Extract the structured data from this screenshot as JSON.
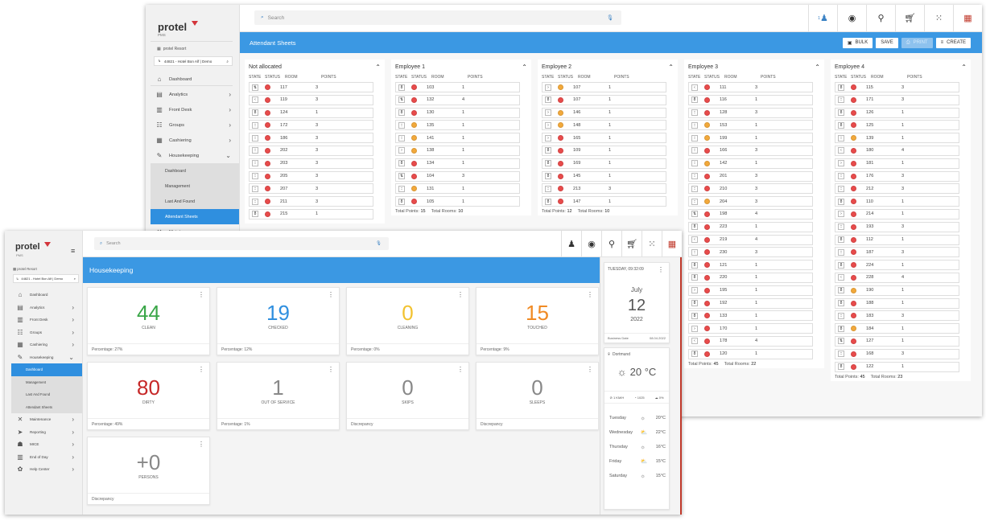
{
  "back": {
    "logo": "protel",
    "logo_sub": "PMS",
    "hotel_name": "protel Resort",
    "hotel_selector": "44821 - Hotel Bon Alf | Demo",
    "search_placeholder": "Search",
    "topbar_badge": "1",
    "page_title": "Attendant Sheets",
    "buttons": {
      "bulk": "BULK",
      "save": "SAVE",
      "print": "PRINT",
      "create": "CREATE"
    },
    "nav": [
      {
        "label": "Dashboard",
        "icon": "home-icon",
        "chev": ""
      },
      {
        "label": "Analytics",
        "icon": "analytics-icon",
        "chev": "›"
      },
      {
        "label": "Front Desk",
        "icon": "front-desk-icon",
        "chev": "›"
      },
      {
        "label": "Groups",
        "icon": "groups-icon",
        "chev": "›"
      },
      {
        "label": "Cashiering",
        "icon": "cashiering-icon",
        "chev": "›"
      },
      {
        "label": "Housekeeping",
        "icon": "broom-icon",
        "chev": "⌄"
      },
      {
        "label": "Dashboard",
        "icon": "",
        "chev": "",
        "sub": true
      },
      {
        "label": "Management",
        "icon": "",
        "chev": "",
        "sub": true
      },
      {
        "label": "Last And Found",
        "icon": "",
        "chev": "",
        "sub": true
      },
      {
        "label": "Attendant Sheets",
        "icon": "",
        "chev": "",
        "sub": true,
        "active": true
      },
      {
        "label": "Maintenance",
        "icon": "wrench-icon",
        "chev": "›"
      }
    ],
    "col_headers": {
      "state": "STATE",
      "status": "STATUS",
      "room": "ROOM",
      "points": "POINTS"
    },
    "labels": {
      "total_points": "Total Points:",
      "total_rooms": "Total Rooms:"
    },
    "columns": [
      {
        "title": "Not allocated",
        "total_points": "",
        "total_rooms": "",
        "rows": [
          {
            "state": "⇅",
            "color": "#e84b4b",
            "room": "117",
            "points": "3"
          },
          {
            "state": "‹",
            "color": "#e84b4b",
            "room": "119",
            "points": "3"
          },
          {
            "state": "8",
            "color": "#e84b4b",
            "room": "124",
            "points": "1"
          },
          {
            "state": "::",
            "color": "#e84b4b",
            "room": "172",
            "points": "3"
          },
          {
            "state": "::",
            "color": "#e84b4b",
            "room": "186",
            "points": "3"
          },
          {
            "state": "::",
            "color": "#e84b4b",
            "room": "202",
            "points": "3"
          },
          {
            "state": "::",
            "color": "#e84b4b",
            "room": "203",
            "points": "3"
          },
          {
            "state": "::",
            "color": "#e84b4b",
            "room": "205",
            "points": "3"
          },
          {
            "state": "::",
            "color": "#e84b4b",
            "room": "207",
            "points": "3"
          },
          {
            "state": "::",
            "color": "#e84b4b",
            "room": "211",
            "points": "3"
          },
          {
            "state": "8",
            "color": "#e84b4b",
            "room": "215",
            "points": "1"
          }
        ]
      },
      {
        "title": "Employee 1",
        "total_points": "15",
        "total_rooms": "10",
        "rows": [
          {
            "state": "8",
            "color": "#e84b4b",
            "room": "103",
            "points": "1"
          },
          {
            "state": "⇅",
            "color": "#e84b4b",
            "room": "132",
            "points": "4"
          },
          {
            "state": "8",
            "color": "#e84b4b",
            "room": "130",
            "points": "1"
          },
          {
            "state": "::",
            "color": "#f2a93b",
            "room": "135",
            "points": "1"
          },
          {
            "state": "::",
            "color": "#f2a93b",
            "room": "141",
            "points": "1"
          },
          {
            "state": "›",
            "color": "#f2a93b",
            "room": "138",
            "points": "1"
          },
          {
            "state": "8",
            "color": "#e84b4b",
            "room": "134",
            "points": "1"
          },
          {
            "state": "⇅",
            "color": "#e84b4b",
            "room": "104",
            "points": "3"
          },
          {
            "state": "::",
            "color": "#f2a93b",
            "room": "131",
            "points": "1"
          },
          {
            "state": "8",
            "color": "#e84b4b",
            "room": "105",
            "points": "1"
          }
        ]
      },
      {
        "title": "Employee 2",
        "total_points": "12",
        "total_rooms": "10",
        "rows": [
          {
            "state": "›",
            "color": "#f2a93b",
            "room": "107",
            "points": "1"
          },
          {
            "state": "8",
            "color": "#e84b4b",
            "room": "107",
            "points": "1"
          },
          {
            "state": "›",
            "color": "#f2a93b",
            "room": "146",
            "points": "1"
          },
          {
            "state": "›",
            "color": "#f2a93b",
            "room": "148",
            "points": "1"
          },
          {
            "state": "›",
            "color": "#e84b4b",
            "room": "165",
            "points": "1"
          },
          {
            "state": "8",
            "color": "#e84b4b",
            "room": "109",
            "points": "1"
          },
          {
            "state": "8",
            "color": "#e84b4b",
            "room": "169",
            "points": "1"
          },
          {
            "state": "8",
            "color": "#e84b4b",
            "room": "145",
            "points": "1"
          },
          {
            "state": "::",
            "color": "#e84b4b",
            "room": "213",
            "points": "3"
          },
          {
            "state": "8",
            "color": "#e84b4b",
            "room": "147",
            "points": "1"
          }
        ]
      },
      {
        "title": "Employee 3",
        "total_points": "45",
        "total_rooms": "22",
        "rows": [
          {
            "state": "‹",
            "color": "#e84b4b",
            "room": "111",
            "points": "3"
          },
          {
            "state": "8",
            "color": "#e84b4b",
            "room": "116",
            "points": "1"
          },
          {
            "state": "::",
            "color": "#e84b4b",
            "room": "128",
            "points": "3"
          },
          {
            "state": "::",
            "color": "#f2a93b",
            "room": "153",
            "points": "1"
          },
          {
            "state": "::",
            "color": "#f2a93b",
            "room": "199",
            "points": "1"
          },
          {
            "state": "::",
            "color": "#e84b4b",
            "room": "166",
            "points": "3"
          },
          {
            "state": "::",
            "color": "#f2a93b",
            "room": "142",
            "points": "1"
          },
          {
            "state": "::",
            "color": "#e84b4b",
            "room": "201",
            "points": "3"
          },
          {
            "state": "::",
            "color": "#e84b4b",
            "room": "210",
            "points": "3"
          },
          {
            "state": "::",
            "color": "#f2a93b",
            "room": "204",
            "points": "3"
          },
          {
            "state": "⇅",
            "color": "#e84b4b",
            "room": "198",
            "points": "4"
          },
          {
            "state": "8",
            "color": "#e84b4b",
            "room": "223",
            "points": "1"
          },
          {
            "state": "‹",
            "color": "#e84b4b",
            "room": "219",
            "points": "4"
          },
          {
            "state": "::",
            "color": "#e84b4b",
            "room": "230",
            "points": "3"
          },
          {
            "state": "8",
            "color": "#e84b4b",
            "room": "121",
            "points": "1"
          },
          {
            "state": "8",
            "color": "#e84b4b",
            "room": "220",
            "points": "1"
          },
          {
            "state": "›",
            "color": "#e84b4b",
            "room": "195",
            "points": "1"
          },
          {
            "state": "8",
            "color": "#e84b4b",
            "room": "192",
            "points": "1"
          },
          {
            "state": "8",
            "color": "#e84b4b",
            "room": "133",
            "points": "1"
          },
          {
            "state": "›",
            "color": "#e84b4b",
            "room": "170",
            "points": "1"
          },
          {
            "state": "‹",
            "color": "#e84b4b",
            "room": "178",
            "points": "4"
          },
          {
            "state": "8",
            "color": "#e84b4b",
            "room": "120",
            "points": "1"
          }
        ]
      },
      {
        "title": "Employee 4",
        "total_points": "45",
        "total_rooms": "23",
        "rows": [
          {
            "state": "8",
            "color": "#e84b4b",
            "room": "115",
            "points": "3"
          },
          {
            "state": "::",
            "color": "#e84b4b",
            "room": "171",
            "points": "3"
          },
          {
            "state": "8",
            "color": "#e84b4b",
            "room": "126",
            "points": "1"
          },
          {
            "state": "8",
            "color": "#e84b4b",
            "room": "125",
            "points": "1"
          },
          {
            "state": "::",
            "color": "#f2a93b",
            "room": "139",
            "points": "1"
          },
          {
            "state": "‹",
            "color": "#e84b4b",
            "room": "180",
            "points": "4"
          },
          {
            "state": "›",
            "color": "#e84b4b",
            "room": "181",
            "points": "1"
          },
          {
            "state": "::",
            "color": "#e84b4b",
            "room": "176",
            "points": "3"
          },
          {
            "state": "::",
            "color": "#e84b4b",
            "room": "212",
            "points": "3"
          },
          {
            "state": "8",
            "color": "#e84b4b",
            "room": "110",
            "points": "1"
          },
          {
            "state": "›",
            "color": "#e84b4b",
            "room": "214",
            "points": "1"
          },
          {
            "state": "::",
            "color": "#e84b4b",
            "room": "193",
            "points": "3"
          },
          {
            "state": "8",
            "color": "#e84b4b",
            "room": "112",
            "points": "1"
          },
          {
            "state": "::",
            "color": "#e84b4b",
            "room": "187",
            "points": "3"
          },
          {
            "state": "8",
            "color": "#e84b4b",
            "room": "224",
            "points": "1"
          },
          {
            "state": "‹",
            "color": "#e84b4b",
            "room": "228",
            "points": "4"
          },
          {
            "state": "8",
            "color": "#f2a93b",
            "room": "190",
            "points": "1"
          },
          {
            "state": "8",
            "color": "#e84b4b",
            "room": "188",
            "points": "1"
          },
          {
            "state": "::",
            "color": "#e84b4b",
            "room": "183",
            "points": "3"
          },
          {
            "state": "8",
            "color": "#f2a93b",
            "room": "184",
            "points": "1"
          },
          {
            "state": "⇅",
            "color": "#e84b4b",
            "room": "127",
            "points": "1"
          },
          {
            "state": "::",
            "color": "#e84b4b",
            "room": "168",
            "points": "3"
          },
          {
            "state": "8",
            "color": "#e84b4b",
            "room": "122",
            "points": "1"
          }
        ]
      }
    ]
  },
  "front": {
    "logo": "protel",
    "logo_sub": "PMS",
    "hotel_name": "protel Resort",
    "hotel_selector": "44821 - Hotel Bon Alf | Demo",
    "search_placeholder": "Search",
    "page_title": "Housekeeping",
    "nav": [
      {
        "label": "Dashboard",
        "icon": "home-icon",
        "chev": ""
      },
      {
        "label": "Analytics",
        "icon": "analytics-icon",
        "chev": "›"
      },
      {
        "label": "Front Desk",
        "icon": "front-desk-icon",
        "chev": "›"
      },
      {
        "label": "Groups",
        "icon": "groups-icon",
        "chev": "›"
      },
      {
        "label": "Cashiering",
        "icon": "cashiering-icon",
        "chev": "›"
      },
      {
        "label": "Housekeeping",
        "icon": "broom-icon",
        "chev": "⌄"
      },
      {
        "label": "Dashboard",
        "icon": "",
        "chev": "",
        "sub": true,
        "active": true
      },
      {
        "label": "Management",
        "icon": "",
        "chev": "",
        "sub": true
      },
      {
        "label": "Last And Found",
        "icon": "",
        "chev": "",
        "sub": true
      },
      {
        "label": "Attendant Sheets",
        "icon": "",
        "chev": "",
        "sub": true
      },
      {
        "label": "Maintenance",
        "icon": "wrench-icon",
        "chev": "›"
      },
      {
        "label": "Reporting",
        "icon": "reporting-icon",
        "chev": "›"
      },
      {
        "label": "MICE",
        "icon": "mice-icon",
        "chev": "›"
      },
      {
        "label": "End of Day",
        "icon": "end-of-day-icon",
        "chev": "›"
      },
      {
        "label": "Help Center",
        "icon": "help-icon",
        "chev": "›"
      }
    ],
    "cards": [
      {
        "value": "44",
        "label": "CLEAN",
        "footer": "Percentage: 27%",
        "color": "#3aa648"
      },
      {
        "value": "19",
        "label": "CHECKED",
        "footer": "Percentage: 12%",
        "color": "#2f8fdf"
      },
      {
        "value": "0",
        "label": "CLEANING",
        "footer": "Percentage: 0%",
        "color": "#f2c230"
      },
      {
        "value": "15",
        "label": "TOUCHED",
        "footer": "Percentage: 9%",
        "color": "#f08a24"
      },
      {
        "value": "80",
        "label": "DIRTY",
        "footer": "Percentage: 49%",
        "color": "#c62828"
      },
      {
        "value": "1",
        "label": "OUT OF SERVICE",
        "footer": "Percentage: 1%",
        "color": "#888888"
      },
      {
        "value": "0",
        "label": "SKIPS",
        "footer": "Discrepancy",
        "color": "#888888"
      },
      {
        "value": "0",
        "label": "SLEEPS",
        "footer": "Discrepancy",
        "color": "#888888"
      },
      {
        "value": "+0",
        "label": "PERSONS",
        "footer": "Discrepancy",
        "color": "#888888"
      }
    ],
    "date_widget": {
      "header": "TUESDAY, 09:32:09",
      "month": "July",
      "day": "12",
      "year": "2022",
      "business_label": "Business Date",
      "business_date": "08.04.2022"
    },
    "weather": {
      "city": "Dortmund",
      "temp": "20 °C",
      "wind": "1 KM/H",
      "pressure": "1025",
      "rain": "0%",
      "forecast": [
        {
          "day": "Tuesday",
          "icon": "sun-icon",
          "temp": "20°C"
        },
        {
          "day": "Wednesday",
          "icon": "cloud-sun-icon",
          "temp": "22°C"
        },
        {
          "day": "Thursday",
          "icon": "sun-icon",
          "temp": "16°C"
        },
        {
          "day": "Friday",
          "icon": "cloud-sun-icon",
          "temp": "15°C"
        },
        {
          "day": "Saturday",
          "icon": "sun-icon",
          "temp": "15°C"
        }
      ]
    }
  }
}
